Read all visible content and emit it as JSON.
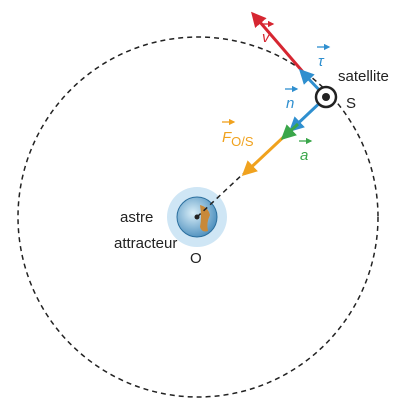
{
  "satellite": {
    "label": "satellite",
    "point": "S"
  },
  "attractor": {
    "lines": [
      "astre",
      "attracteur"
    ],
    "point": "O"
  },
  "vectors": [
    {
      "symbol": "v"
    },
    {
      "symbol": "τ"
    },
    {
      "symbol": "n"
    },
    {
      "symbol": "a"
    },
    {
      "symbol": "F",
      "subscript": "O/S"
    }
  ]
}
